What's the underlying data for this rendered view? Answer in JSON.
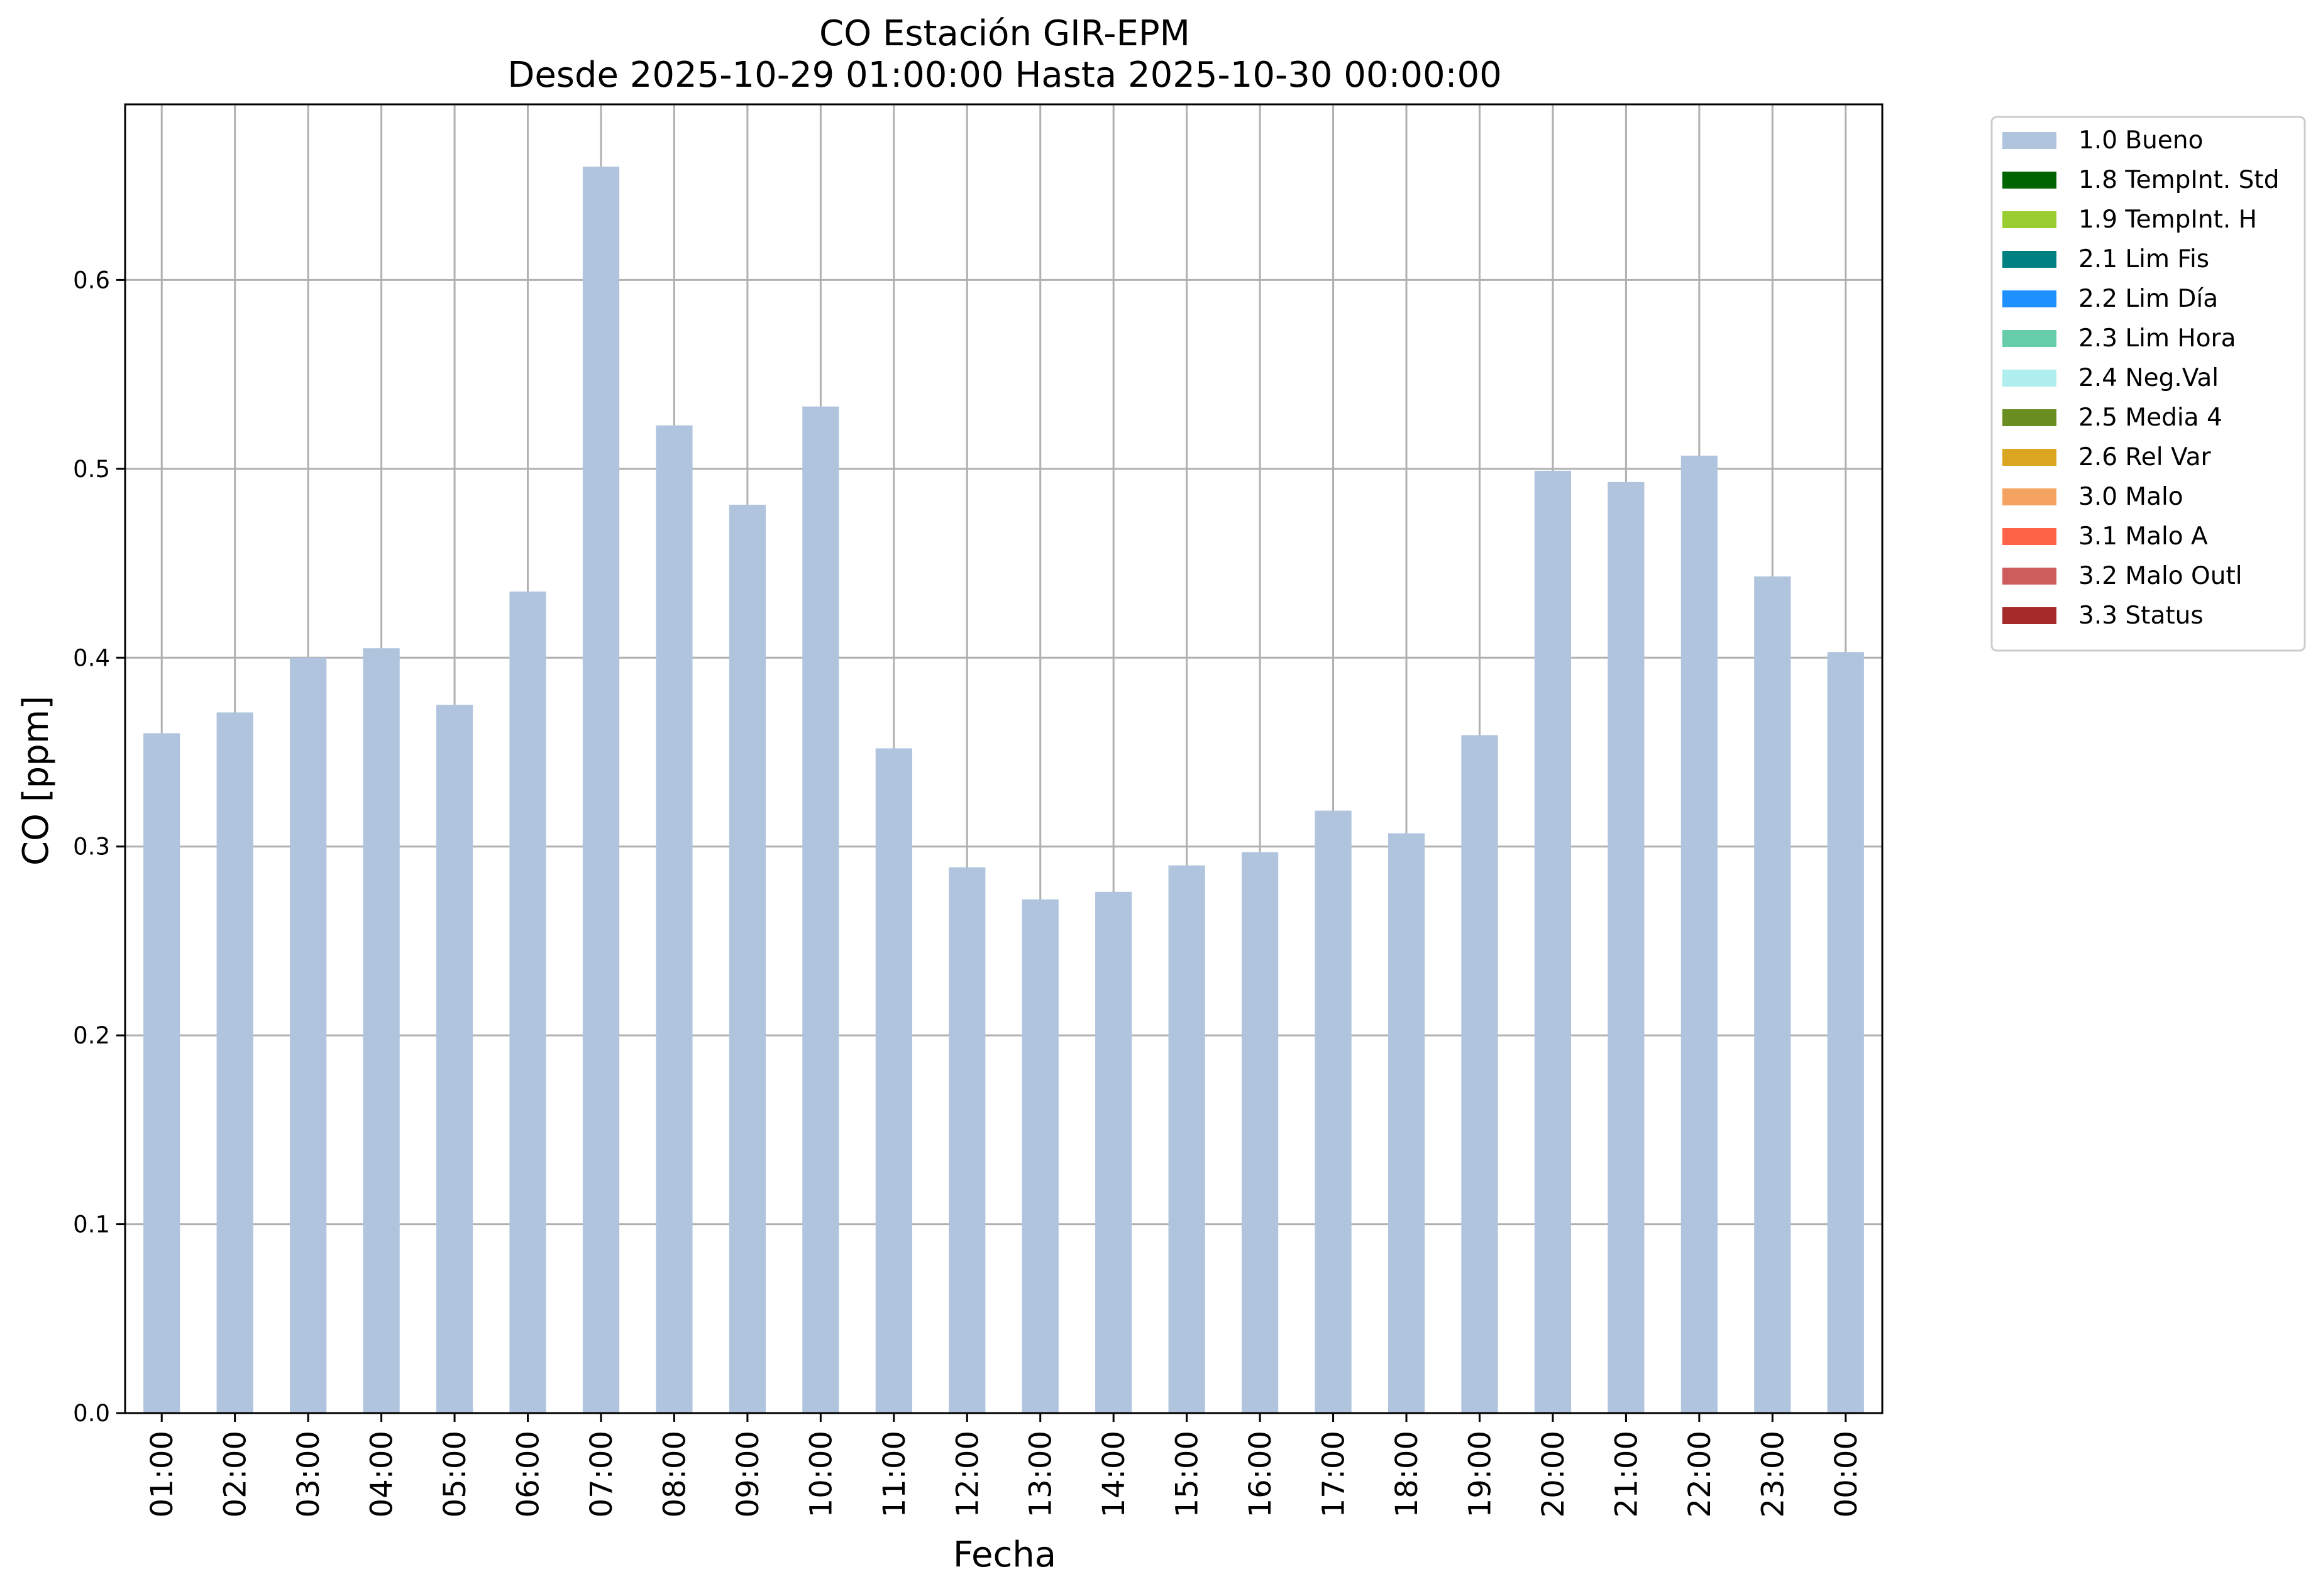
{
  "chart_data": {
    "type": "bar",
    "title": "CO Estación GIR-EPM",
    "subtitle": "Desde 2025-10-29 01:00:00 Hasta 2025-10-30 00:00:00",
    "xlabel": "Fecha",
    "ylabel": "CO [ppm]",
    "ylim": [
      0,
      0.693
    ],
    "yticks": [
      0.0,
      0.1,
      0.2,
      0.3,
      0.4,
      0.5,
      0.6
    ],
    "ytick_labels": [
      "0.0",
      "0.1",
      "0.2",
      "0.3",
      "0.4",
      "0.5",
      "0.6"
    ],
    "grid": true,
    "legend_position": "outside-top-right",
    "categories": [
      "01:00",
      "02:00",
      "03:00",
      "04:00",
      "05:00",
      "06:00",
      "07:00",
      "08:00",
      "09:00",
      "10:00",
      "11:00",
      "12:00",
      "13:00",
      "14:00",
      "15:00",
      "16:00",
      "17:00",
      "18:00",
      "19:00",
      "20:00",
      "21:00",
      "22:00",
      "23:00",
      "00:00"
    ],
    "series": [
      {
        "name": "1.0 Bueno",
        "color": "#b0c4de",
        "values": [
          0.36,
          0.371,
          0.4,
          0.405,
          0.375,
          0.435,
          0.66,
          0.523,
          0.481,
          0.533,
          0.352,
          0.289,
          0.272,
          0.276,
          0.29,
          0.297,
          0.319,
          0.307,
          0.359,
          0.499,
          0.493,
          0.507,
          0.443,
          0.403
        ]
      }
    ],
    "legend": [
      {
        "label": "1.0 Bueno",
        "color": "#b0c4de"
      },
      {
        "label": "1.8 TempInt. Std",
        "color": "#006400"
      },
      {
        "label": "1.9 TempInt. H",
        "color": "#9acd32"
      },
      {
        "label": "2.1 Lim Fis",
        "color": "#008080"
      },
      {
        "label": "2.2 Lim Día",
        "color": "#1e90ff"
      },
      {
        "label": "2.3 Lim Hora",
        "color": "#66cdaa"
      },
      {
        "label": "2.4 Neg.Val",
        "color": "#afeeee"
      },
      {
        "label": "2.5 Media 4",
        "color": "#6b8e23"
      },
      {
        "label": "2.6 Rel Var",
        "color": "#daa520"
      },
      {
        "label": "3.0 Malo",
        "color": "#f4a460"
      },
      {
        "label": "3.1 Malo A",
        "color": "#ff6347"
      },
      {
        "label": "3.2 Malo Outl",
        "color": "#cd5c5c"
      },
      {
        "label": "3.3 Status",
        "color": "#a52a2a"
      }
    ]
  }
}
